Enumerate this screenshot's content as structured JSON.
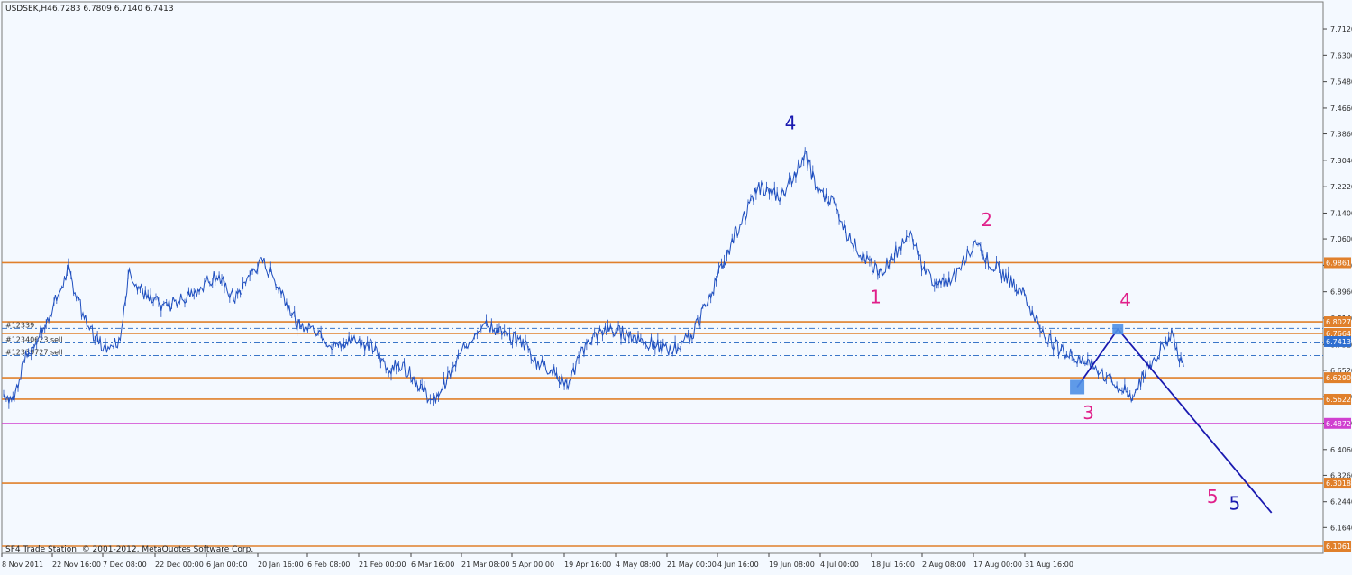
{
  "header": {
    "symbol": "USDSEK,H4",
    "ohlc": "6.7283 6.7809 6.7140 6.7413"
  },
  "footer": {
    "copyright": "SF4 Trade Station, © 2001-2012, MetaQuotes Software Corp."
  },
  "colors": {
    "background": "#f4f9ff",
    "candles": "#1f4fbf",
    "level_line": "#e0802c",
    "support_line": "#c45a14",
    "magenta_level": "#d040d0",
    "wave_pink": "#e0208a",
    "wave_navy": "#1a1ab0",
    "order_line": "#3a76c8",
    "current_price": "#2f6fd0"
  },
  "chart_data": {
    "type": "candlestick",
    "instrument": "USDSEK",
    "timeframe": "H4",
    "ylim": [
      6.1061,
      7.796
    ],
    "y_ticks": [
      "7.7120",
      "7.6300",
      "7.5480",
      "7.4660",
      "7.3860",
      "7.3040",
      "7.2220",
      "7.1400",
      "7.0600",
      "6.9780",
      "6.8960",
      "6.8140",
      "6.7320",
      "6.6520",
      "6.5700",
      "6.4880",
      "6.4060",
      "6.3260",
      "6.2440",
      "6.1640"
    ],
    "x_ticks": [
      "8 Nov 2011",
      "22 Nov 16:00",
      "7 Dec 08:00",
      "22 Dec 00:00",
      "6 Jan 00:00",
      "20 Jan 16:00",
      "6 Feb 08:00",
      "21 Feb 00:00",
      "6 Mar 16:00",
      "21 Mar 08:00",
      "5 Apr 00:00",
      "19 Apr 16:00",
      "4 May 08:00",
      "21 May 00:00",
      "4 Jun 16:00",
      "19 Jun 08:00",
      "4 Jul 00:00",
      "18 Jul 16:00",
      "2 Aug 08:00",
      "17 Aug 00:00",
      "31 Aug 16:00"
    ],
    "price_path": [
      [
        0,
        6.58
      ],
      [
        0.5,
        6.56
      ],
      [
        1.2,
        6.69
      ],
      [
        2.3,
        6.8
      ],
      [
        3.5,
        6.96
      ],
      [
        4.5,
        6.79
      ],
      [
        5.5,
        6.72
      ],
      [
        6.3,
        6.75
      ],
      [
        6.8,
        6.96
      ],
      [
        7.8,
        6.87
      ],
      [
        8.8,
        6.85
      ],
      [
        10,
        6.88
      ],
      [
        11.5,
        6.95
      ],
      [
        12.5,
        6.87
      ],
      [
        13.3,
        6.95
      ],
      [
        14,
        6.99
      ],
      [
        15,
        6.9
      ],
      [
        16,
        6.78
      ],
      [
        17,
        6.78
      ],
      [
        17.8,
        6.72
      ],
      [
        18.8,
        6.75
      ],
      [
        19.8,
        6.73
      ],
      [
        20.8,
        6.66
      ],
      [
        21.5,
        6.67
      ],
      [
        22.6,
        6.6
      ],
      [
        23.2,
        6.55
      ],
      [
        24,
        6.63
      ],
      [
        25,
        6.73
      ],
      [
        25.8,
        6.8
      ],
      [
        27.2,
        6.76
      ],
      [
        28.2,
        6.73
      ],
      [
        28.8,
        6.68
      ],
      [
        29.6,
        6.65
      ],
      [
        30.5,
        6.61
      ],
      [
        31.5,
        6.74
      ],
      [
        32.5,
        6.78
      ],
      [
        34,
        6.76
      ],
      [
        35.2,
        6.73
      ],
      [
        36,
        6.71
      ],
      [
        37.2,
        6.76
      ],
      [
        38.5,
        6.93
      ],
      [
        39.5,
        7.07
      ],
      [
        40.8,
        7.22
      ],
      [
        42,
        7.19
      ],
      [
        42.8,
        7.27
      ],
      [
        43.3,
        7.32
      ],
      [
        44,
        7.21
      ],
      [
        45,
        7.16
      ],
      [
        45.5,
        7.08
      ],
      [
        46.5,
        7.0
      ],
      [
        47.3,
        6.95
      ],
      [
        48.2,
        7.02
      ],
      [
        49,
        7.07
      ],
      [
        49.6,
        6.98
      ],
      [
        50.5,
        6.91
      ],
      [
        51.5,
        6.95
      ],
      [
        52.5,
        7.06
      ],
      [
        53.2,
        6.99
      ],
      [
        54,
        6.95
      ],
      [
        55,
        6.9
      ],
      [
        56,
        6.78
      ],
      [
        57,
        6.72
      ],
      [
        58,
        6.69
      ],
      [
        59,
        6.66
      ],
      [
        60,
        6.61
      ],
      [
        61,
        6.57
      ],
      [
        61.8,
        6.66
      ],
      [
        62.5,
        6.71
      ],
      [
        63.1,
        6.77
      ],
      [
        63.6,
        6.68
      ],
      [
        63.8,
        6.66
      ]
    ],
    "horizontal_levels": [
      {
        "price": "6.9861",
        "value": 6.9861,
        "role": "resistance"
      },
      {
        "price": "6.8027",
        "value": 6.8027,
        "role": "resistance"
      },
      {
        "price": "6.7664",
        "value": 6.7664,
        "role": "resistance"
      },
      {
        "price": "6.6290",
        "value": 6.629,
        "role": "support"
      },
      {
        "price": "6.5622",
        "value": 6.5622,
        "role": "support"
      },
      {
        "price": "6.4872",
        "value": 6.4872,
        "role": "support"
      },
      {
        "price": "6.3018",
        "value": 6.3018,
        "role": "support"
      },
      {
        "price": "6.1061",
        "value": 6.1061,
        "role": "support"
      }
    ],
    "current_price": {
      "price": "6.7413",
      "value": 6.7413
    },
    "pending_orders": [
      {
        "label": "#12339",
        "price": 6.782
      },
      {
        "label": "#12340623 sell",
        "price": 6.737
      },
      {
        "label": "#12339727 sell",
        "price": 6.698
      }
    ],
    "wave_labels": [
      {
        "text": "4",
        "color": "navy",
        "t": 42.2,
        "price": 7.4
      },
      {
        "text": "1",
        "color": "pink",
        "t": 46.8,
        "price": 6.86
      },
      {
        "text": "2",
        "color": "pink",
        "t": 52.8,
        "price": 7.1
      },
      {
        "text": "4",
        "color": "pink",
        "t": 60.3,
        "price": 6.85
      },
      {
        "text": "3",
        "color": "pink",
        "t": 58.3,
        "price": 6.5
      },
      {
        "text": "5",
        "color": "pink",
        "t": 65.0,
        "price": 6.24
      },
      {
        "text": "5",
        "color": "navy",
        "t": 66.2,
        "price": 6.22
      }
    ],
    "projection_path": [
      {
        "t": 58.0,
        "price": 6.6
      },
      {
        "t": 60.2,
        "price": 6.78
      },
      {
        "t": 68.5,
        "price": 6.21
      }
    ]
  }
}
